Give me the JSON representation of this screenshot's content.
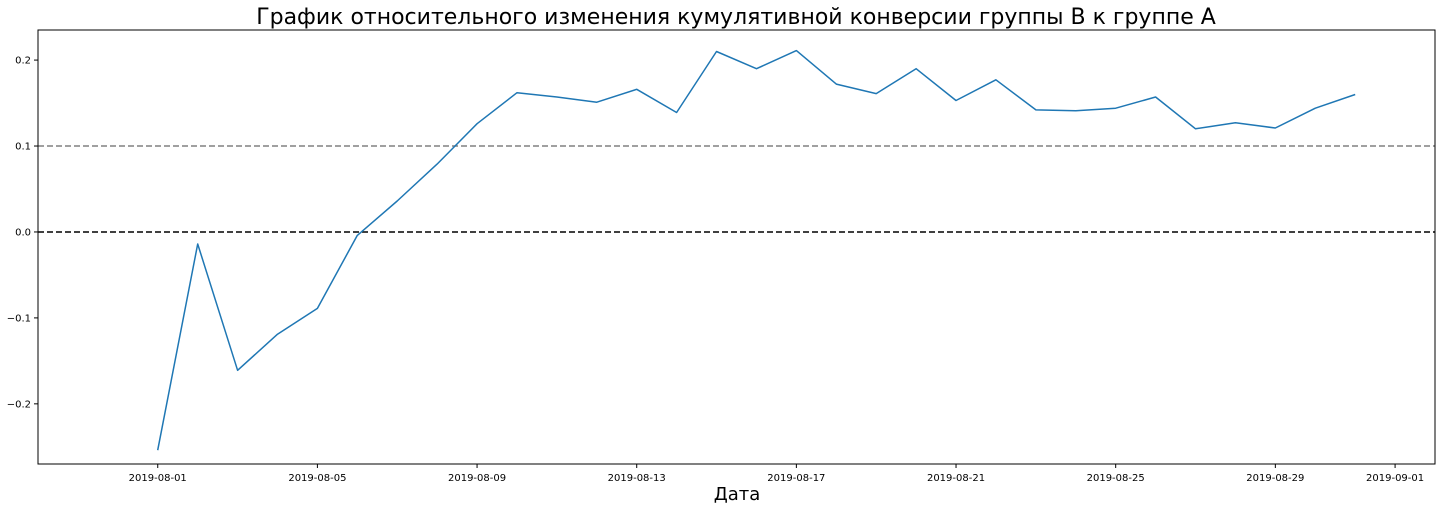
{
  "chart_data": {
    "type": "line",
    "title": "График относительного изменения кумулятивной конверсии группы B к группе A",
    "xlabel": "Дата",
    "ylabel": "",
    "x_tick_labels": [
      "2019-08-01",
      "2019-08-05",
      "2019-08-09",
      "2019-08-13",
      "2019-08-17",
      "2019-08-21",
      "2019-08-25",
      "2019-08-29",
      "2019-09-01"
    ],
    "y_tick_labels": [
      "−0.2",
      "−0.1",
      "0.0",
      "0.1",
      "0.2"
    ],
    "y_ticks": [
      -0.2,
      -0.1,
      0.0,
      0.1,
      0.2
    ],
    "xlim": [
      "2019-07-29",
      "2019-09-02"
    ],
    "ylim": [
      -0.27,
      0.235
    ],
    "grid": false,
    "series": [
      {
        "x": [
          "2019-08-01",
          "2019-08-02",
          "2019-08-03",
          "2019-08-04",
          "2019-08-05",
          "2019-08-06",
          "2019-08-07",
          "2019-08-08",
          "2019-08-09",
          "2019-08-10",
          "2019-08-11",
          "2019-08-12",
          "2019-08-13",
          "2019-08-14",
          "2019-08-15",
          "2019-08-16",
          "2019-08-17",
          "2019-08-18",
          "2019-08-19",
          "2019-08-20",
          "2019-08-21",
          "2019-08-22",
          "2019-08-23",
          "2019-08-24",
          "2019-08-25",
          "2019-08-26",
          "2019-08-27",
          "2019-08-28",
          "2019-08-29",
          "2019-08-30",
          "2019-08-31"
        ],
        "values": [
          -0.254,
          -0.014,
          -0.161,
          -0.119,
          -0.089,
          -0.004,
          0.036,
          0.079,
          0.126,
          0.162,
          0.157,
          0.151,
          0.166,
          0.139,
          0.21,
          0.19,
          0.211,
          0.172,
          0.161,
          0.19,
          0.153,
          0.177,
          0.142,
          0.141,
          0.144,
          0.157,
          0.12,
          0.127,
          0.121,
          0.144,
          0.16
        ],
        "color": "#1f77b4"
      }
    ],
    "reference_lines": [
      {
        "y": 0.0,
        "style": "dashed",
        "color": "#000000"
      },
      {
        "y": 0.1,
        "style": "dashed",
        "color": "#808080"
      }
    ]
  }
}
